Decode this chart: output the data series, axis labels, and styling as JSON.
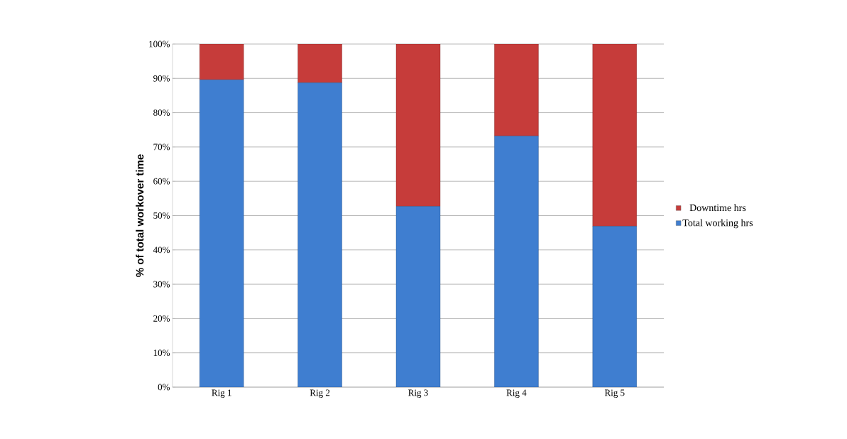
{
  "chart_data": {
    "type": "bar",
    "stacked": true,
    "ylabel": "% of total workover time",
    "categories": [
      "Rig 1",
      "Rig 2",
      "Rig 3",
      "Rig 4",
      "Rig 5"
    ],
    "series": [
      {
        "name": "Total working hrs",
        "color": "#3f7ed0",
        "values": [
          89.6,
          88.7,
          52.7,
          73.2,
          46.9
        ]
      },
      {
        "name": "Downtime hrs",
        "color": "#c63c3a",
        "values": [
          10.4,
          11.3,
          47.3,
          26.8,
          53.1
        ]
      }
    ],
    "ylim": [
      0,
      100
    ],
    "yticks": [
      {
        "value": 0,
        "label": "0%"
      },
      {
        "value": 10,
        "label": "10%"
      },
      {
        "value": 20,
        "label": "20%"
      },
      {
        "value": 30,
        "label": "30%"
      },
      {
        "value": 40,
        "label": "40%"
      },
      {
        "value": 50,
        "label": "50%"
      },
      {
        "value": 60,
        "label": "60%"
      },
      {
        "value": 70,
        "label": "70%"
      },
      {
        "value": 80,
        "label": "80%"
      },
      {
        "value": 90,
        "label": "90%"
      },
      {
        "value": 100,
        "label": "100%"
      }
    ],
    "grid": "y",
    "legend": "right"
  }
}
